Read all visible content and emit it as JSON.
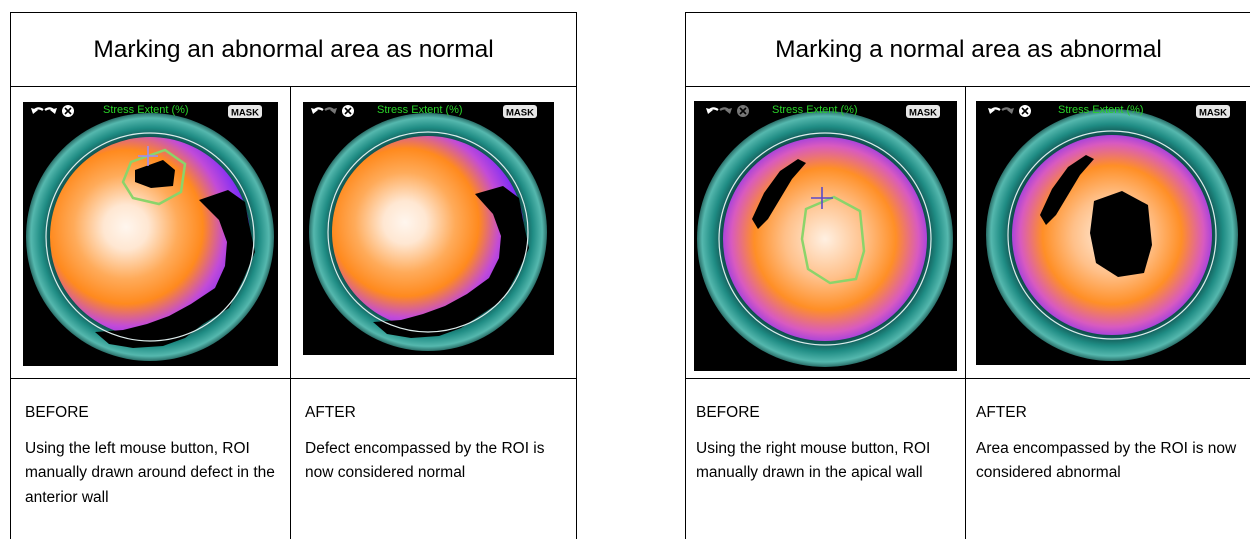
{
  "panels": [
    {
      "title": "Marking an abnormal area as normal",
      "before": {
        "label": "BEFORE",
        "text": "Using the left mouse button, ROI manually drawn around defect in the anterior wall",
        "scan_title": "Stress Extent (%)",
        "mask_label": "MASK"
      },
      "after": {
        "label": "AFTER",
        "text": "Defect encompassed by the ROI is now considered normal",
        "scan_title": "Stress Extent (%)",
        "mask_label": "MASK"
      }
    },
    {
      "title": "Marking a normal area as abnormal",
      "before": {
        "label": "BEFORE",
        "text": "Using the right mouse button, ROI manually drawn in the apical wall",
        "scan_title": "Stress Extent (%)",
        "mask_label": "MASK"
      },
      "after": {
        "label": "AFTER",
        "text": "Area encompassed by the ROI is now considered abnormal",
        "scan_title": "Stress Extent (%)",
        "mask_label": "MASK"
      }
    }
  ],
  "colors": {
    "ring": "#1f8c84",
    "heat_core": "#fff6ee",
    "heat_orange": "#ff8a1e",
    "heat_purple": "#7a2cff",
    "roi": "#8bd46a",
    "scan_title": "#29d329"
  },
  "icons": [
    "undo-icon",
    "redo-icon",
    "clear-icon"
  ]
}
